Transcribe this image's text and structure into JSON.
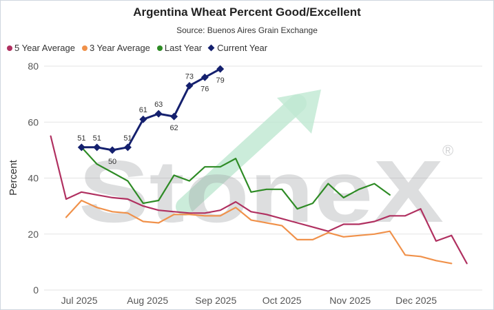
{
  "chart_data": {
    "type": "line",
    "title": "Argentina Wheat Percent Good/Excellent",
    "subtitle": "Source: Buenos Aires Grain Exchange",
    "xlabel": "",
    "ylabel": "Percent",
    "ylim": [
      0,
      80
    ],
    "yticks": [
      0,
      20,
      40,
      60,
      80
    ],
    "xlim": [
      "2025-06-15",
      "2025-12-31"
    ],
    "xticks": [
      {
        "date": "2025-07-01",
        "label": "Jul 2025"
      },
      {
        "date": "2025-08-01",
        "label": "Aug 2025"
      },
      {
        "date": "2025-09-01",
        "label": "Sep 2025"
      },
      {
        "date": "2025-10-01",
        "label": "Oct 2025"
      },
      {
        "date": "2025-11-01",
        "label": "Nov 2025"
      },
      {
        "date": "2025-12-01",
        "label": "Dec 2025"
      }
    ],
    "grid": "horizontal",
    "legend_position": "top-left",
    "watermark": "StoneX",
    "series": [
      {
        "name": "5 Year Average",
        "color": "#b03060",
        "marker": "none",
        "points": [
          [
            "2025-06-18",
            55
          ],
          [
            "2025-06-25",
            32.5
          ],
          [
            "2025-07-02",
            35
          ],
          [
            "2025-07-09",
            34
          ],
          [
            "2025-07-16",
            33
          ],
          [
            "2025-07-23",
            32.5
          ],
          [
            "2025-07-30",
            30
          ],
          [
            "2025-08-06",
            28.5
          ],
          [
            "2025-08-13",
            28
          ],
          [
            "2025-08-20",
            27.5
          ],
          [
            "2025-08-27",
            27.5
          ],
          [
            "2025-09-03",
            28.5
          ],
          [
            "2025-09-10",
            31.5
          ],
          [
            "2025-09-17",
            28
          ],
          [
            "2025-09-24",
            27
          ],
          [
            "2025-10-01",
            25.5
          ],
          [
            "2025-10-08",
            24
          ],
          [
            "2025-10-15",
            22.5
          ],
          [
            "2025-10-22",
            21
          ],
          [
            "2025-10-29",
            23.5
          ],
          [
            "2025-11-05",
            23.5
          ],
          [
            "2025-11-12",
            24.5
          ],
          [
            "2025-11-19",
            26.5
          ],
          [
            "2025-11-26",
            26.5
          ],
          [
            "2025-12-03",
            29
          ],
          [
            "2025-12-10",
            17.5
          ],
          [
            "2025-12-17",
            19.5
          ],
          [
            "2025-12-24",
            9.5
          ]
        ]
      },
      {
        "name": "3 Year Average",
        "color": "#f0914a",
        "marker": "none",
        "points": [
          [
            "2025-06-25",
            26
          ],
          [
            "2025-07-02",
            32
          ],
          [
            "2025-07-09",
            29.5
          ],
          [
            "2025-07-16",
            28
          ],
          [
            "2025-07-23",
            27.5
          ],
          [
            "2025-07-30",
            24.5
          ],
          [
            "2025-08-06",
            24
          ],
          [
            "2025-08-13",
            27
          ],
          [
            "2025-08-20",
            27
          ],
          [
            "2025-08-27",
            26.5
          ],
          [
            "2025-09-03",
            26.5
          ],
          [
            "2025-09-10",
            29.5
          ],
          [
            "2025-09-17",
            25
          ],
          [
            "2025-09-24",
            24
          ],
          [
            "2025-10-01",
            23
          ],
          [
            "2025-10-08",
            18
          ],
          [
            "2025-10-15",
            18
          ],
          [
            "2025-10-22",
            20.5
          ],
          [
            "2025-10-29",
            19
          ],
          [
            "2025-11-05",
            19.5
          ],
          [
            "2025-11-12",
            20
          ],
          [
            "2025-11-19",
            21
          ],
          [
            "2025-11-26",
            12.5
          ],
          [
            "2025-12-03",
            12
          ],
          [
            "2025-12-10",
            10.5
          ],
          [
            "2025-12-17",
            9.5
          ]
        ]
      },
      {
        "name": "Last Year",
        "color": "#2e8b25",
        "marker": "none",
        "points": [
          [
            "2025-07-02",
            51
          ],
          [
            "2025-07-09",
            45
          ],
          [
            "2025-07-16",
            42
          ],
          [
            "2025-07-23",
            39
          ],
          [
            "2025-07-30",
            31
          ],
          [
            "2025-08-06",
            32
          ],
          [
            "2025-08-13",
            41
          ],
          [
            "2025-08-20",
            39
          ],
          [
            "2025-08-27",
            44
          ],
          [
            "2025-09-03",
            44
          ],
          [
            "2025-09-10",
            47
          ],
          [
            "2025-09-17",
            35
          ],
          [
            "2025-09-24",
            36
          ],
          [
            "2025-10-01",
            36
          ],
          [
            "2025-10-08",
            29
          ],
          [
            "2025-10-15",
            31
          ],
          [
            "2025-10-22",
            38
          ],
          [
            "2025-10-29",
            33
          ],
          [
            "2025-11-05",
            36
          ],
          [
            "2025-11-12",
            38
          ],
          [
            "2025-11-19",
            34
          ]
        ]
      },
      {
        "name": "Current Year",
        "color": "#14206e",
        "marker": "diamond",
        "labels": true,
        "points": [
          [
            "2025-07-02",
            51
          ],
          [
            "2025-07-09",
            51
          ],
          [
            "2025-07-16",
            50
          ],
          [
            "2025-07-23",
            51
          ],
          [
            "2025-07-30",
            61
          ],
          [
            "2025-08-06",
            63
          ],
          [
            "2025-08-13",
            62
          ],
          [
            "2025-08-20",
            73
          ],
          [
            "2025-08-27",
            76
          ],
          [
            "2025-09-03",
            79
          ]
        ],
        "label_positions": [
          "above",
          "above",
          "below",
          "above",
          "above",
          "above",
          "below",
          "above",
          "below",
          "below"
        ]
      }
    ]
  }
}
